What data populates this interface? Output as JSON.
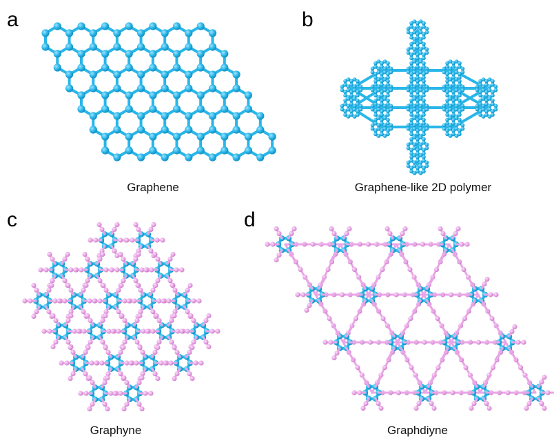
{
  "colors": {
    "carbon_ring": "#29b6e8",
    "carbon_ring_dark": "#0f93c9",
    "acetylenic": "#e9a6e6",
    "acetylenic_dark": "#c77ac4",
    "background": "#ffffff"
  },
  "panels": [
    {
      "letter": "a",
      "caption": "Graphene",
      "structure": "graphene"
    },
    {
      "letter": "b",
      "caption": "Graphene-like 2D polymer",
      "structure": "graphene-like-2d-polymer"
    },
    {
      "letter": "c",
      "caption": "Graphyne",
      "structure": "graphyne"
    },
    {
      "letter": "d",
      "caption": "Graphdiyne",
      "structure": "graphdiyne"
    }
  ]
}
